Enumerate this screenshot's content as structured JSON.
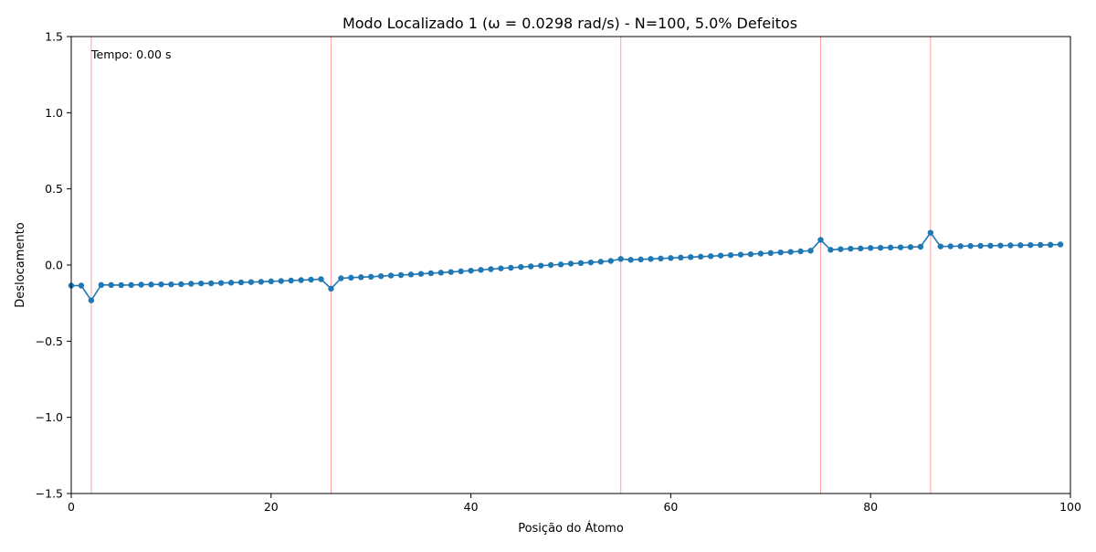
{
  "chart_data": {
    "type": "line",
    "title": "Modo Localizado 1 (ω = 0.0298 rad/s) - N=100, 5.0% Defeitos",
    "xlabel": "Posição do Átomo",
    "ylabel": "Deslocamento",
    "annotation": "Tempo: 0.00 s",
    "xlim": [
      0,
      100
    ],
    "ylim": [
      -1.5,
      1.5
    ],
    "xticks": [
      0,
      20,
      40,
      60,
      80,
      100
    ],
    "xtick_labels": [
      "0",
      "20",
      "40",
      "60",
      "80",
      "100"
    ],
    "yticks": [
      -1.5,
      -1.0,
      -0.5,
      0.0,
      0.5,
      1.0,
      1.5
    ],
    "ytick_labels": [
      "−1.5",
      "−1.0",
      "−0.5",
      "0.0",
      "0.5",
      "1.0",
      "1.5"
    ],
    "defect_positions": [
      2,
      26,
      55,
      75,
      86
    ],
    "grid": false,
    "colors": {
      "series": "#1f77b4",
      "defect_line": "#ff9896"
    },
    "series": [
      {
        "x": [
          0,
          1,
          2,
          3,
          4,
          5,
          6,
          7,
          8,
          9,
          10,
          11,
          12,
          13,
          14,
          15,
          16,
          17,
          18,
          19,
          20,
          21,
          22,
          23,
          24,
          25,
          26,
          27,
          28,
          29,
          30,
          31,
          32,
          33,
          34,
          35,
          36,
          37,
          38,
          39,
          40,
          41,
          42,
          43,
          44,
          45,
          46,
          47,
          48,
          49,
          50,
          51,
          52,
          53,
          54,
          55,
          56,
          57,
          58,
          59,
          60,
          61,
          62,
          63,
          64,
          65,
          66,
          67,
          68,
          69,
          70,
          71,
          72,
          73,
          74,
          75,
          76,
          77,
          78,
          79,
          80,
          81,
          82,
          83,
          84,
          85,
          86,
          87,
          88,
          89,
          90,
          91,
          92,
          93,
          94,
          95,
          96,
          97,
          98,
          99
        ],
        "values": [
          -0.135,
          -0.135,
          -0.232,
          -0.131,
          -0.131,
          -0.132,
          -0.131,
          -0.129,
          -0.128,
          -0.127,
          -0.127,
          -0.126,
          -0.123,
          -0.121,
          -0.12,
          -0.118,
          -0.116,
          -0.114,
          -0.112,
          -0.11,
          -0.107,
          -0.105,
          -0.102,
          -0.099,
          -0.096,
          -0.093,
          -0.155,
          -0.087,
          -0.083,
          -0.08,
          -0.077,
          -0.073,
          -0.069,
          -0.066,
          -0.062,
          -0.058,
          -0.054,
          -0.05,
          -0.046,
          -0.041,
          -0.037,
          -0.032,
          -0.027,
          -0.022,
          -0.018,
          -0.013,
          -0.009,
          -0.004,
          0.0,
          0.004,
          0.009,
          0.013,
          0.017,
          0.022,
          0.027,
          0.04,
          0.034,
          0.037,
          0.04,
          0.043,
          0.046,
          0.049,
          0.052,
          0.055,
          0.058,
          0.062,
          0.065,
          0.068,
          0.071,
          0.075,
          0.079,
          0.083,
          0.086,
          0.09,
          0.094,
          0.165,
          0.1,
          0.104,
          0.107,
          0.109,
          0.112,
          0.113,
          0.115,
          0.116,
          0.118,
          0.12,
          0.212,
          0.122,
          0.123,
          0.124,
          0.125,
          0.126,
          0.127,
          0.128,
          0.129,
          0.13,
          0.131,
          0.132,
          0.133,
          0.135
        ]
      }
    ]
  }
}
